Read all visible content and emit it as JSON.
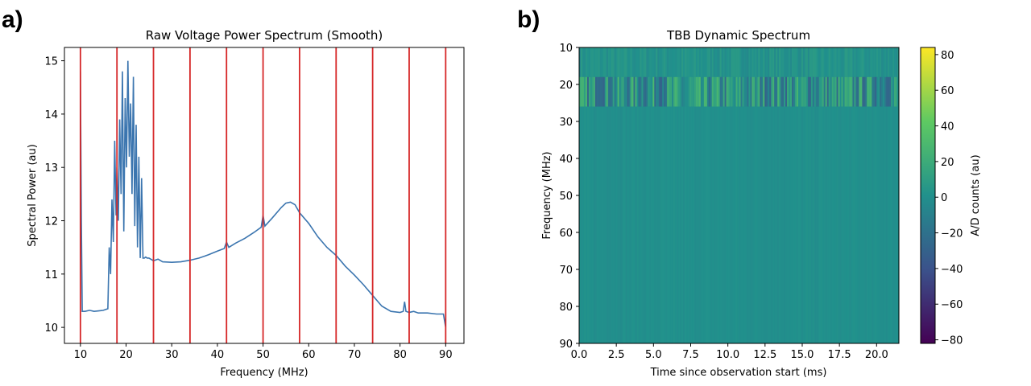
{
  "chart_data": [
    {
      "panel": "a)",
      "type": "line",
      "title": "Raw Voltage Power Spectrum (Smooth)",
      "xlabel": "Frequency (MHz)",
      "ylabel": "Spectral Power (au)",
      "xlim": [
        6.5,
        94
      ],
      "ylim": [
        9.7,
        15.25
      ],
      "xticks": [
        10,
        20,
        30,
        40,
        50,
        60,
        70,
        80,
        90
      ],
      "yticks": [
        10,
        11,
        12,
        13,
        14,
        15
      ],
      "line_color": "#3b75af",
      "vline_color": "#d62728",
      "vlines": [
        10,
        18,
        26,
        34,
        42,
        50,
        58,
        66,
        74,
        82,
        90
      ],
      "x": [
        10,
        10.2,
        10.4,
        11,
        12,
        13,
        14,
        15,
        16,
        16.3,
        16.6,
        16.9,
        17.2,
        17.5,
        17.8,
        18,
        18.3,
        18.6,
        18.9,
        19.2,
        19.5,
        19.8,
        20.1,
        20.4,
        20.7,
        21,
        21.3,
        21.6,
        21.9,
        22.2,
        22.5,
        22.8,
        23.1,
        23.4,
        23.7,
        24,
        24.3,
        24.6,
        25,
        26,
        27,
        28,
        30,
        32,
        34,
        36,
        38,
        40,
        41.5,
        42,
        42.5,
        44,
        46,
        48,
        49.6,
        50,
        50.4,
        52,
        54,
        55,
        56,
        57,
        58,
        59,
        60,
        62,
        64,
        66,
        68,
        70,
        72,
        74,
        75,
        76,
        78,
        80,
        80.7,
        81,
        81.3,
        82,
        83,
        84,
        86,
        88,
        89.5,
        90
      ],
      "y": [
        14.8,
        12.0,
        10.3,
        10.3,
        10.32,
        10.3,
        10.31,
        10.32,
        10.35,
        11.5,
        11.0,
        12.4,
        11.6,
        13.5,
        12.1,
        13.0,
        12.0,
        13.9,
        12.5,
        14.8,
        11.8,
        14.3,
        13.0,
        15.0,
        13.2,
        14.2,
        12.5,
        14.7,
        11.9,
        13.8,
        11.5,
        13.2,
        11.3,
        12.8,
        11.3,
        11.3,
        11.32,
        11.3,
        11.3,
        11.25,
        11.28,
        11.23,
        11.22,
        11.23,
        11.26,
        11.3,
        11.36,
        11.43,
        11.48,
        11.6,
        11.5,
        11.58,
        11.67,
        11.78,
        11.88,
        12.1,
        11.9,
        12.05,
        12.25,
        12.33,
        12.35,
        12.3,
        12.15,
        12.05,
        11.95,
        11.7,
        11.5,
        11.35,
        11.15,
        10.98,
        10.8,
        10.6,
        10.5,
        10.4,
        10.3,
        10.28,
        10.3,
        10.48,
        10.3,
        10.28,
        10.3,
        10.27,
        10.27,
        10.25,
        10.25,
        10.0
      ]
    },
    {
      "panel": "b)",
      "type": "heatmap",
      "title": "TBB Dynamic Spectrum",
      "xlabel": "Time since observation start (ms)",
      "ylabel": "Frequency (MHz)",
      "xlim": [
        0,
        21.5
      ],
      "ylim": [
        90,
        10
      ],
      "xticks": [
        0.0,
        2.5,
        5.0,
        7.5,
        10.0,
        12.5,
        15.0,
        17.5,
        20.0
      ],
      "yticks": [
        10,
        20,
        30,
        40,
        50,
        60,
        70,
        80,
        90
      ],
      "colorbar_label": "A/D counts (au)",
      "colorbar_range": [
        -82,
        84
      ],
      "colorbar_ticks": [
        80,
        60,
        40,
        20,
        0,
        -20,
        -40,
        -60,
        -80
      ],
      "colormap": [
        "#440154",
        "#3b528b",
        "#21918c",
        "#5ec962",
        "#fde725"
      ],
      "background_value": 0,
      "bands": [
        {
          "freq": [
            10,
            18
          ],
          "amplitude": 6,
          "mean": 2
        },
        {
          "freq": [
            18,
            26
          ],
          "amplitude": 30,
          "mean": 0
        },
        {
          "freq": [
            26,
            90
          ],
          "amplitude": 2,
          "mean": 0
        }
      ]
    }
  ]
}
